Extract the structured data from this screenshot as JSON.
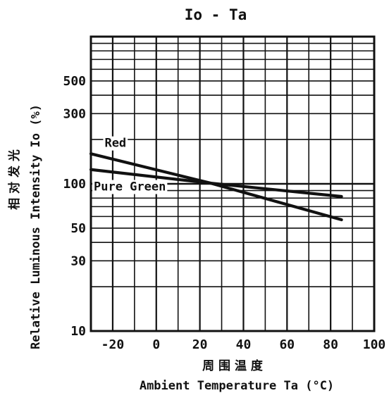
{
  "chart_data": {
    "type": "line",
    "title": "Io - Ta",
    "xlabel": "Ambient Temperature Ta (°C)",
    "xlabel_cn": "周 围 温 度",
    "ylabel": "Relative Luminous Intensity Io (%)",
    "ylabel_cn": "相 对 发 光",
    "xlim": [
      -30,
      100
    ],
    "ylim": [
      10,
      1000
    ],
    "yscale": "log",
    "grid": true,
    "xticks": [
      -20,
      0,
      20,
      40,
      60,
      80,
      100
    ],
    "xtick_labels": [
      "-20",
      "0",
      "20",
      "40",
      "60",
      "80",
      "100"
    ],
    "yticks": [
      10,
      30,
      50,
      100,
      300,
      500
    ],
    "ytick_labels": [
      "10",
      "30",
      "50",
      "100",
      "300",
      "500"
    ],
    "series": [
      {
        "name": "Red",
        "x": [
          -30,
          25,
          85
        ],
        "y": [
          160,
          101,
          57
        ]
      },
      {
        "name": "Pure Green",
        "x": [
          -30,
          25,
          85
        ],
        "y": [
          125,
          101,
          82
        ]
      }
    ],
    "colors": {
      "line": "#111111",
      "grid": "#111111",
      "background": "#ffffff"
    }
  }
}
